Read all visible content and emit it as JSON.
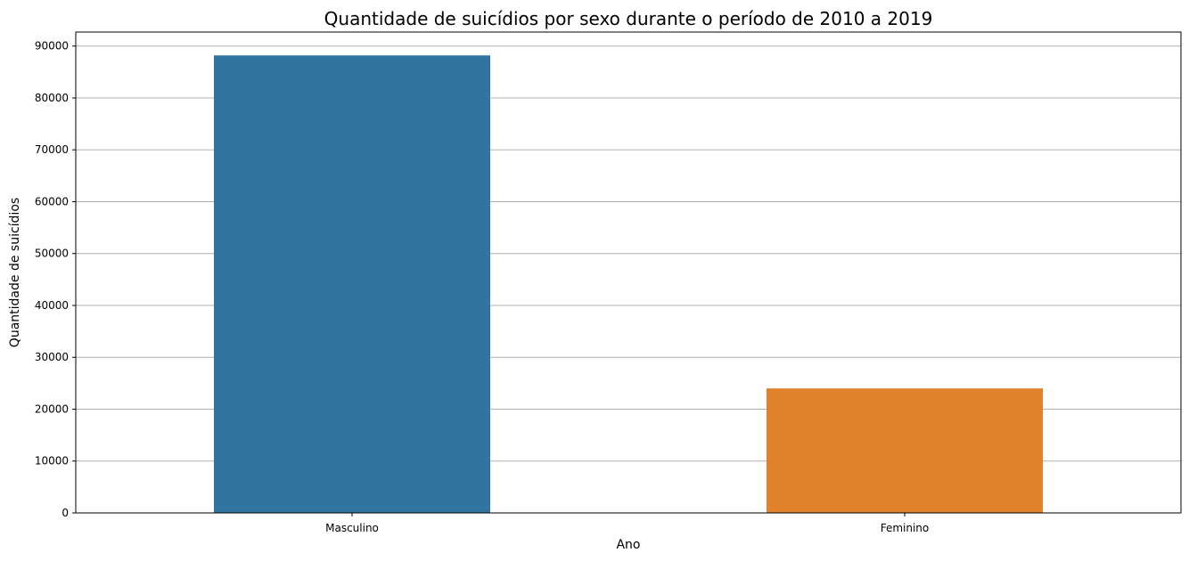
{
  "chart_data": {
    "type": "bar",
    "title": "Quantidade de suicídios por sexo durante o período de 2010 a 2019",
    "xlabel": "Ano",
    "ylabel": "Quantidade de suicídios",
    "categories": [
      "Masculino",
      "Feminino"
    ],
    "values": [
      88200,
      24000
    ],
    "colors": [
      "#3274a1",
      "#e1812c"
    ],
    "ylim": [
      0,
      92700
    ],
    "yticks": [
      0,
      10000,
      20000,
      30000,
      40000,
      50000,
      60000,
      70000,
      80000,
      90000
    ],
    "grid": "horizontal",
    "legend": "none"
  }
}
